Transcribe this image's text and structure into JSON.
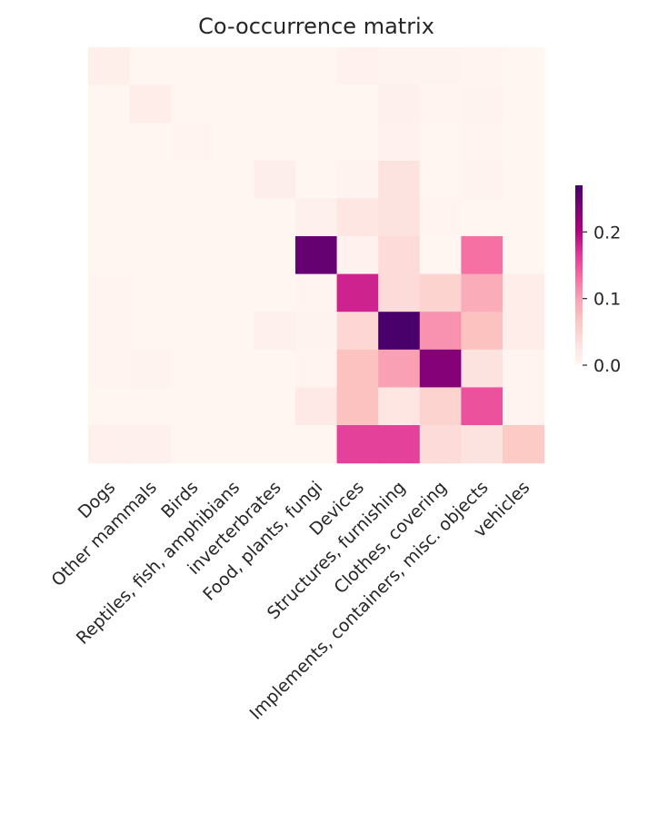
{
  "chart_data": {
    "type": "heatmap",
    "title": "Co-occurrence matrix",
    "xlabel": "",
    "ylabel": "",
    "categories": [
      "Dogs",
      "Other mammals",
      "Birds",
      "Reptiles, fish, amphibians",
      "inverterbrates",
      "Food, plants, fungi",
      "Devices",
      "Structures, furnishing",
      "Clothes, covering",
      "Implements, containers, misc. objects",
      "vehicles"
    ],
    "y_tick_labels_visible": false,
    "matrix": [
      [
        0.012,
        0.003,
        0.002,
        0.002,
        0.002,
        0.002,
        0.008,
        0.006,
        0.006,
        0.005,
        0.003
      ],
      [
        0.002,
        0.015,
        0.002,
        0.001,
        0.001,
        0.001,
        0.003,
        0.01,
        0.004,
        0.006,
        0.002
      ],
      [
        0.002,
        0.001,
        0.005,
        0.001,
        0.001,
        0.001,
        0.002,
        0.008,
        0.003,
        0.004,
        0.002
      ],
      [
        0.002,
        0.001,
        0.001,
        0.001,
        0.013,
        0.002,
        0.006,
        0.03,
        0.003,
        0.006,
        0.002
      ],
      [
        0.002,
        0.001,
        0.001,
        0.001,
        0.002,
        0.01,
        0.025,
        0.03,
        0.004,
        0.002,
        0.002
      ],
      [
        0.002,
        0.001,
        0.001,
        0.001,
        0.001,
        0.25,
        0.008,
        0.04,
        0.003,
        0.13,
        0.002
      ],
      [
        0.005,
        0.003,
        0.002,
        0.002,
        0.002,
        0.004,
        0.18,
        0.04,
        0.05,
        0.09,
        0.015
      ],
      [
        0.004,
        0.002,
        0.002,
        0.002,
        0.01,
        0.006,
        0.045,
        0.27,
        0.11,
        0.07,
        0.015
      ],
      [
        0.004,
        0.006,
        0.002,
        0.002,
        0.002,
        0.004,
        0.07,
        0.1,
        0.23,
        0.03,
        0.004
      ],
      [
        0.003,
        0.003,
        0.002,
        0.002,
        0.002,
        0.02,
        0.07,
        0.025,
        0.05,
        0.15,
        0.005
      ],
      [
        0.01,
        0.01,
        0.002,
        0.002,
        0.002,
        0.002,
        0.16,
        0.16,
        0.04,
        0.03,
        0.06
      ]
    ],
    "colorbar": {
      "colormap": "RdPu",
      "range": [
        0.0,
        0.27
      ],
      "ticks": [
        0.0,
        0.1,
        0.2
      ],
      "tick_labels": [
        "0.0",
        "0.1",
        "0.2"
      ]
    },
    "grid": false,
    "legend": "none"
  }
}
